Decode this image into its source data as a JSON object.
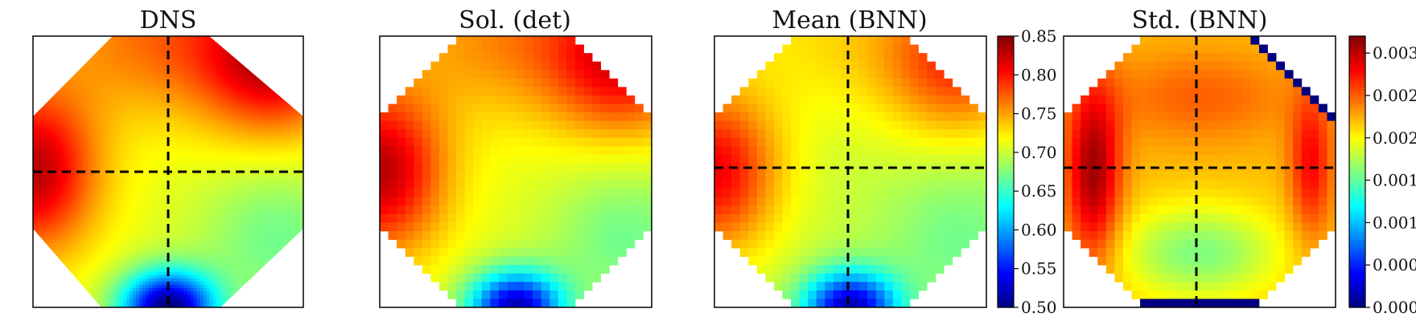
{
  "chart_data": [
    {
      "type": "heatmap",
      "title": "DNS",
      "shape": "octagon",
      "dashed_crosshair": true,
      "colormap": "jet",
      "value_range": [
        0.5,
        0.85
      ],
      "field": {
        "left_edge_center": 0.83,
        "top_right_corner": 0.81,
        "top_center": 0.77,
        "center": 0.71,
        "bottom_center": 0.5,
        "lower_right": 0.67
      }
    },
    {
      "type": "heatmap",
      "title": "Sol. (det)",
      "shape": "pixelated-octagon",
      "colormap": "jet",
      "value_range": [
        0.5,
        0.85
      ],
      "field": {
        "left_edge_center": 0.83,
        "top_right_corner": 0.8,
        "top_center": 0.76,
        "center": 0.71,
        "bottom_center": 0.52,
        "lower_right": 0.67
      }
    },
    {
      "type": "heatmap",
      "title": "Mean (BNN)",
      "shape": "pixelated-octagon",
      "dashed_crosshair": true,
      "colormap": "jet",
      "value_range": [
        0.5,
        0.85
      ],
      "field": {
        "left_edge_center": 0.81,
        "top_right_corner": 0.78,
        "top_center": 0.73,
        "center": 0.7,
        "bottom_center": 0.52,
        "lower_right": 0.67
      },
      "colorbar": {
        "min": 0.5,
        "max": 0.85,
        "ticks": [
          "0.50",
          "0.55",
          "0.60",
          "0.65",
          "0.70",
          "0.75",
          "0.80",
          "0.85"
        ]
      }
    },
    {
      "type": "heatmap",
      "title": "Std. (BNN)",
      "shape": "pixelated-octagon",
      "dashed_crosshair": true,
      "colormap": "jet",
      "value_range": [
        0.0,
        0.0032
      ],
      "field": {
        "left_band": 0.0031,
        "right_band": 0.0028,
        "upper_interior": 0.0025,
        "center": 0.0022,
        "lower_interior": 0.0016,
        "bottom_row": 0.0,
        "top_right_diagonal_edge": 0.0
      },
      "colorbar": {
        "min": 0.0,
        "max": 0.0032,
        "ticks": [
          "0.0000",
          "0.0005",
          "0.0010",
          "0.0015",
          "0.0020",
          "0.0025",
          "0.0030"
        ]
      }
    }
  ]
}
